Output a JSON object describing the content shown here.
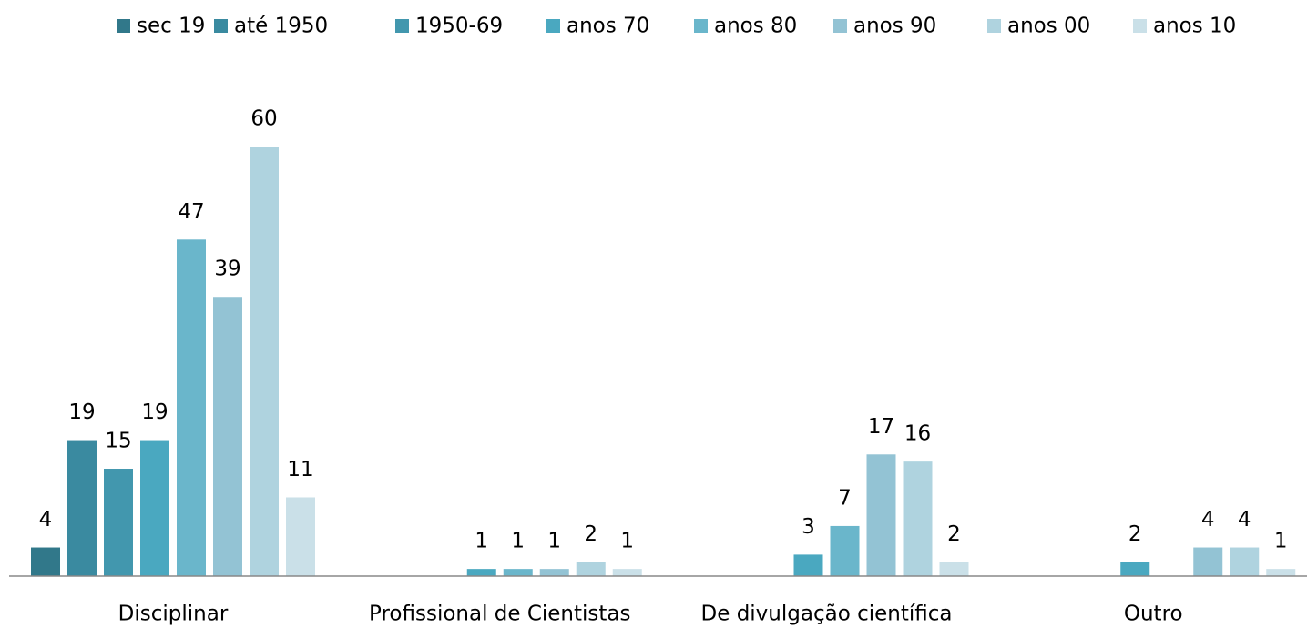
{
  "chart_data": {
    "type": "bar",
    "categories": [
      "Disciplinar",
      "Profissional de Cientistas",
      "De divulgação científica",
      "Outro"
    ],
    "series": [
      {
        "name": "sec 19",
        "color": "#31788a",
        "values": [
          4,
          null,
          null,
          null
        ]
      },
      {
        "name": "até 1950",
        "color": "#3a8aa0",
        "values": [
          19,
          null,
          null,
          null
        ]
      },
      {
        "name": "1950-69",
        "color": "#4297ae",
        "values": [
          15,
          null,
          null,
          null
        ]
      },
      {
        "name": "anos 70",
        "color": "#4aa8c0",
        "values": [
          19,
          1,
          3,
          2
        ]
      },
      {
        "name": "anos 80",
        "color": "#6ab6cb",
        "values": [
          47,
          1,
          7,
          null
        ]
      },
      {
        "name": "anos 90",
        "color": "#93c3d4",
        "values": [
          39,
          1,
          17,
          4
        ]
      },
      {
        "name": "anos 00",
        "color": "#afd3df",
        "values": [
          60,
          2,
          16,
          4
        ]
      },
      {
        "name": "anos 10",
        "color": "#cae0e8",
        "values": [
          11,
          1,
          2,
          1
        ]
      }
    ],
    "ylim": [
      0,
      67
    ],
    "grid": false,
    "legend": "top"
  }
}
